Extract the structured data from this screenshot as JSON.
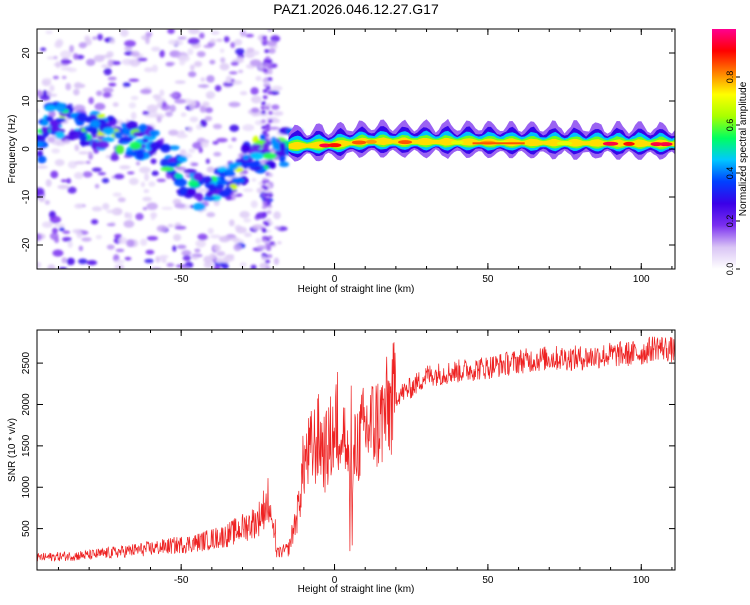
{
  "title": "PAZ1.2026.046.12.27.G17",
  "chart_data": [
    {
      "type": "heatmap",
      "name": "spectrogram",
      "xlabel": "Height of straight line (km)",
      "ylabel": "Frequency (Hz)",
      "xlim": [
        -97,
        111
      ],
      "ylim": [
        -25,
        25
      ],
      "xticks": [
        -50,
        0,
        50,
        100
      ],
      "yticks": [
        -20,
        -10,
        0,
        10,
        20
      ],
      "colorbar": {
        "label": "Normalized spectral amplitude",
        "range": [
          0,
          1
        ],
        "ticks": [
          "0.0",
          "0.2",
          "0.4",
          "0.6",
          "0.8"
        ],
        "stops": [
          "#ffffff",
          "#d9c4f5",
          "#7a2ff0",
          "#3a00e8",
          "#0040ff",
          "#00c8ff",
          "#00ff60",
          "#a8ff00",
          "#ffff00",
          "#ff8000",
          "#ff0000",
          "#ff0090"
        ]
      },
      "description_points": {
        "trend": [
          [
            -95,
            7
          ],
          [
            -80,
            4
          ],
          [
            -65,
            2
          ],
          [
            -55,
            -1
          ],
          [
            -45,
            -9
          ],
          [
            -35,
            -6
          ],
          [
            -25,
            -1
          ],
          [
            -15,
            0.5
          ],
          [
            0,
            0.8
          ],
          [
            10,
            1.5
          ],
          [
            110,
            1
          ]
        ],
        "strong_band": {
          "x_from": -15,
          "x_to": 111,
          "freq_center": 0.8,
          "peak_amplitude": 0.95
        }
      }
    },
    {
      "type": "line",
      "name": "snr",
      "xlabel": "Height of straight line (km)",
      "ylabel": "SNR (10 * v/v)",
      "xlim": [
        -97,
        111
      ],
      "ylim": [
        0,
        2900
      ],
      "xticks": [
        -50,
        0,
        50,
        100
      ],
      "yticks": [
        500,
        1000,
        1500,
        2000,
        2500
      ],
      "color": "#ee2222",
      "envelope": {
        "x": [
          -97,
          -80,
          -60,
          -45,
          -35,
          -25,
          -21,
          -19,
          -15,
          -12,
          -10,
          -5,
          -3,
          0,
          3,
          5,
          7,
          10,
          15,
          20,
          25,
          30,
          40,
          50,
          60,
          70,
          80,
          90,
          100,
          105,
          111
        ],
        "y": [
          150,
          180,
          260,
          330,
          420,
          600,
          900,
          200,
          250,
          700,
          1300,
          1600,
          1400,
          1700,
          1700,
          1100,
          1500,
          1700,
          1800,
          2100,
          2200,
          2350,
          2400,
          2450,
          2520,
          2560,
          2560,
          2600,
          2620,
          2700,
          2650
        ]
      }
    }
  ]
}
